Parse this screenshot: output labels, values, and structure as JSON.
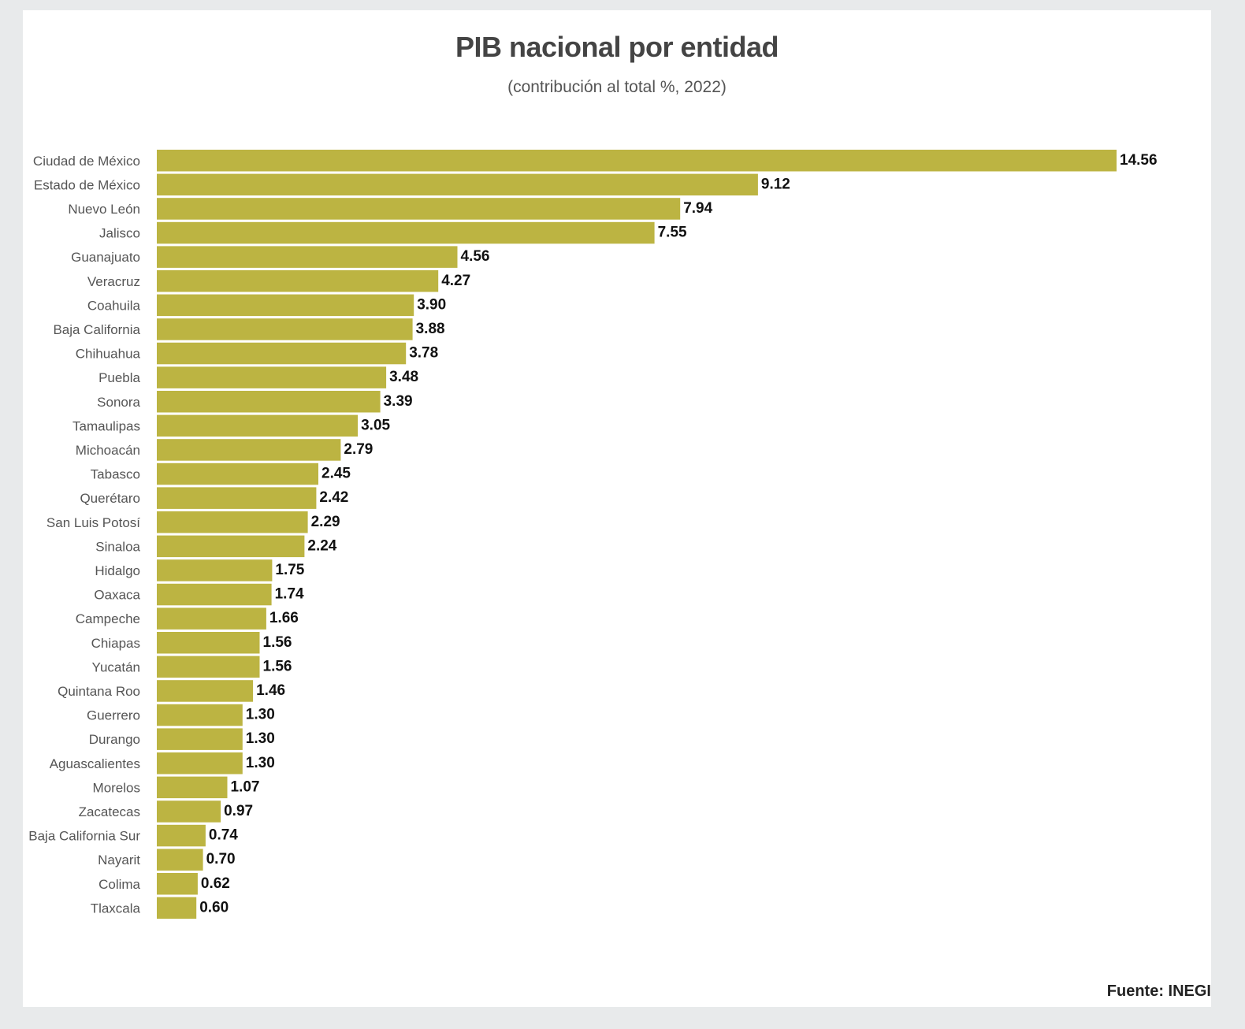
{
  "header": {
    "title": "PIB nacional por entidad",
    "subtitle": "(contribución al total %, 2022)"
  },
  "footer": {
    "source": "Fuente: INEGI"
  },
  "colors": {
    "bar": "#bcb442",
    "background": "#e8eaeb",
    "card": "#ffffff"
  },
  "chart_data": {
    "type": "bar",
    "orientation": "horizontal",
    "title": "PIB nacional por entidad",
    "subtitle": "(contribución al total %, 2022)",
    "categories": [
      "Ciudad de México",
      "Estado de México",
      "Nuevo León",
      "Jalisco",
      "Guanajuato",
      "Veracruz",
      "Coahuila",
      "Baja California",
      "Chihuahua",
      "Puebla",
      "Sonora",
      "Tamaulipas",
      "Michoacán",
      "Tabasco",
      "Querétaro",
      "San Luis Potosí",
      "Sinaloa",
      "Hidalgo",
      "Oaxaca",
      "Campeche",
      "Chiapas",
      "Yucatán",
      "Quintana Roo",
      "Guerrero",
      "Durango",
      "Aguascalientes",
      "Morelos",
      "Zacatecas",
      "Baja California Sur",
      "Nayarit",
      "Colima",
      "Tlaxcala"
    ],
    "values": [
      14.56,
      9.12,
      7.94,
      7.55,
      4.56,
      4.27,
      3.9,
      3.88,
      3.78,
      3.48,
      3.39,
      3.05,
      2.79,
      2.45,
      2.42,
      2.29,
      2.24,
      1.75,
      1.74,
      1.66,
      1.56,
      1.56,
      1.46,
      1.3,
      1.3,
      1.3,
      1.07,
      0.97,
      0.74,
      0.7,
      0.62,
      0.6
    ],
    "value_labels": [
      "14.56",
      "9.12",
      "7.94",
      "7.55",
      "4.56",
      "4.27",
      "3.90",
      "3.88",
      "3.78",
      "3.48",
      "3.39",
      "3.05",
      "2.79",
      "2.45",
      "2.42",
      "2.29",
      "2.24",
      "1.75",
      "1.74",
      "1.66",
      "1.56",
      "1.56",
      "1.46",
      "1.30",
      "1.30",
      "1.30",
      "1.07",
      "0.97",
      "0.74",
      "0.70",
      "0.62",
      "0.60"
    ],
    "xlim": [
      0,
      14.56
    ],
    "grid": false,
    "legend": "none",
    "data_labels": true
  }
}
